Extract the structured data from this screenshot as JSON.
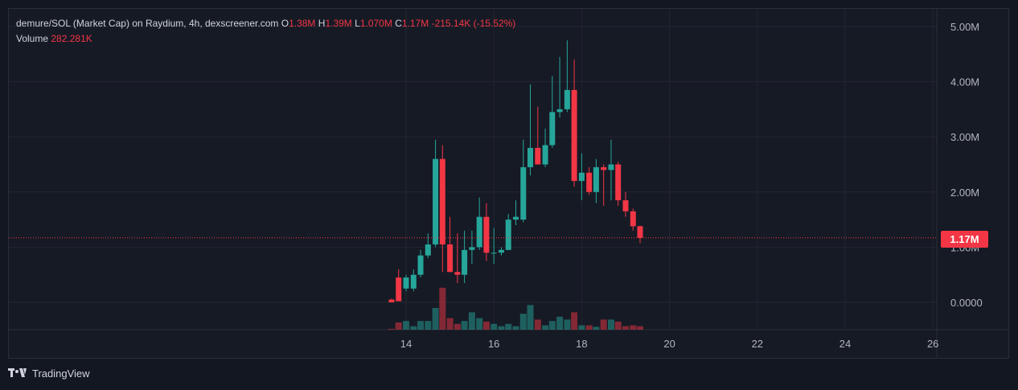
{
  "legend": {
    "symbol": "demure/SOL (Market Cap) on Raydium, 4h, dexscreener.com",
    "o_label": "O",
    "o_value": "1.38M",
    "h_label": "H",
    "h_value": "1.39M",
    "l_label": "L",
    "l_value": "1.070M",
    "c_label": "C",
    "c_value": "1.17M",
    "change": "-215.14K (-15.52%)",
    "volume_label": "Volume",
    "volume_value": "282.281K"
  },
  "price_badge": "1.17M",
  "footer": {
    "brand": "TradingView",
    "logo_icon": "tradingview-logo-icon"
  },
  "colors": {
    "up": "#26a69a",
    "down": "#f23645",
    "bg": "#161a25",
    "grid": "#232632"
  },
  "chart_data": {
    "type": "candlestick",
    "y_ticks": [
      "5.00M",
      "4.00M",
      "3.00M",
      "2.00M",
      "1.00M",
      "0.0000"
    ],
    "y_tick_values": [
      5.0,
      4.0,
      3.0,
      2.0,
      1.0,
      0.0
    ],
    "x_ticks": [
      "14",
      "16",
      "18",
      "20",
      "22",
      "24",
      "26"
    ],
    "x_tick_values": [
      14,
      16,
      18,
      20,
      22,
      24,
      26
    ],
    "ylim": [
      -0.5,
      5.2
    ],
    "xlim": [
      12.0,
      27.8
    ],
    "last_price": 1.17,
    "grid": true,
    "candles": [
      {
        "t": 13.67,
        "o": 0.05,
        "h": 0.07,
        "l": 0.0,
        "c": 0.0,
        "v": 0.03
      },
      {
        "t": 13.83,
        "o": 0.45,
        "h": 0.6,
        "l": 0.05,
        "c": 0.02,
        "v": 0.25
      },
      {
        "t": 14.0,
        "o": 0.25,
        "h": 0.5,
        "l": 0.2,
        "c": 0.45,
        "v": 0.3
      },
      {
        "t": 14.17,
        "o": 0.25,
        "h": 0.6,
        "l": 0.2,
        "c": 0.5,
        "v": 0.12
      },
      {
        "t": 14.33,
        "o": 0.5,
        "h": 0.95,
        "l": 0.45,
        "c": 0.85,
        "v": 0.3
      },
      {
        "t": 14.5,
        "o": 0.85,
        "h": 1.25,
        "l": 0.8,
        "c": 1.05,
        "v": 0.3
      },
      {
        "t": 14.67,
        "o": 1.05,
        "h": 2.95,
        "l": 1.0,
        "c": 2.6,
        "v": 0.75
      },
      {
        "t": 14.83,
        "o": 2.6,
        "h": 2.85,
        "l": 0.55,
        "c": 1.05,
        "v": 1.45
      },
      {
        "t": 15.0,
        "o": 1.05,
        "h": 1.55,
        "l": 0.55,
        "c": 0.55,
        "v": 0.4
      },
      {
        "t": 15.17,
        "o": 0.55,
        "h": 1.25,
        "l": 0.35,
        "c": 0.5,
        "v": 0.2
      },
      {
        "t": 15.33,
        "o": 0.5,
        "h": 1.3,
        "l": 0.35,
        "c": 0.95,
        "v": 0.3
      },
      {
        "t": 15.5,
        "o": 0.95,
        "h": 1.3,
        "l": 0.7,
        "c": 1.0,
        "v": 0.6
      },
      {
        "t": 15.67,
        "o": 1.0,
        "h": 1.9,
        "l": 0.95,
        "c": 1.55,
        "v": 0.4
      },
      {
        "t": 15.83,
        "o": 1.55,
        "h": 1.8,
        "l": 0.75,
        "c": 0.9,
        "v": 0.28
      },
      {
        "t": 16.0,
        "o": 0.9,
        "h": 1.35,
        "l": 0.7,
        "c": 0.9,
        "v": 0.2
      },
      {
        "t": 16.17,
        "o": 0.9,
        "h": 1.0,
        "l": 0.85,
        "c": 0.95,
        "v": 0.12
      },
      {
        "t": 16.33,
        "o": 0.95,
        "h": 1.6,
        "l": 0.95,
        "c": 1.5,
        "v": 0.2
      },
      {
        "t": 16.5,
        "o": 1.5,
        "h": 1.85,
        "l": 1.4,
        "c": 1.55,
        "v": 0.12
      },
      {
        "t": 16.67,
        "o": 1.5,
        "h": 2.95,
        "l": 1.45,
        "c": 2.45,
        "v": 0.55
      },
      {
        "t": 16.83,
        "o": 2.45,
        "h": 3.95,
        "l": 2.3,
        "c": 2.8,
        "v": 0.85
      },
      {
        "t": 17.0,
        "o": 2.8,
        "h": 3.55,
        "l": 2.5,
        "c": 2.5,
        "v": 0.35
      },
      {
        "t": 17.17,
        "o": 2.5,
        "h": 3.15,
        "l": 2.45,
        "c": 2.85,
        "v": 0.15
      },
      {
        "t": 17.33,
        "o": 2.85,
        "h": 4.1,
        "l": 2.8,
        "c": 3.45,
        "v": 0.3
      },
      {
        "t": 17.5,
        "o": 3.45,
        "h": 4.45,
        "l": 3.35,
        "c": 3.5,
        "v": 0.45
      },
      {
        "t": 17.67,
        "o": 3.5,
        "h": 4.75,
        "l": 3.45,
        "c": 3.85,
        "v": 0.35
      },
      {
        "t": 17.83,
        "o": 3.85,
        "h": 4.4,
        "l": 2.1,
        "c": 2.2,
        "v": 0.6
      },
      {
        "t": 18.0,
        "o": 2.2,
        "h": 2.7,
        "l": 1.85,
        "c": 2.35,
        "v": 0.15
      },
      {
        "t": 18.17,
        "o": 2.35,
        "h": 2.45,
        "l": 1.95,
        "c": 2.0,
        "v": 0.15
      },
      {
        "t": 18.33,
        "o": 2.0,
        "h": 2.6,
        "l": 1.8,
        "c": 2.45,
        "v": 0.1
      },
      {
        "t": 18.5,
        "o": 2.45,
        "h": 2.5,
        "l": 1.75,
        "c": 2.4,
        "v": 0.35
      },
      {
        "t": 18.67,
        "o": 2.4,
        "h": 2.95,
        "l": 1.85,
        "c": 2.5,
        "v": 0.35
      },
      {
        "t": 18.83,
        "o": 2.5,
        "h": 2.55,
        "l": 1.75,
        "c": 1.85,
        "v": 0.28
      },
      {
        "t": 19.0,
        "o": 1.85,
        "h": 2.0,
        "l": 1.55,
        "c": 1.65,
        "v": 0.12
      },
      {
        "t": 19.17,
        "o": 1.65,
        "h": 1.7,
        "l": 1.3,
        "c": 1.38,
        "v": 0.15
      },
      {
        "t": 19.33,
        "o": 1.38,
        "h": 1.39,
        "l": 1.07,
        "c": 1.17,
        "v": 0.12
      }
    ]
  }
}
